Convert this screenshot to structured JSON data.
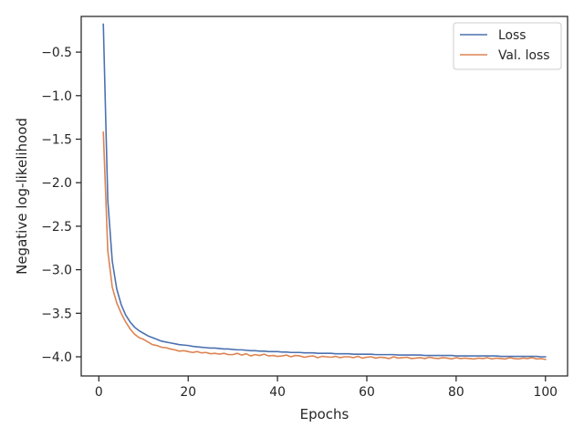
{
  "chart_data": {
    "type": "line",
    "xlabel": "Epochs",
    "ylabel": "Negative log-likelihood",
    "xlim": [
      -3.95,
      104.95
    ],
    "ylim": [
      -4.22,
      -0.09
    ],
    "xticks": [
      0,
      20,
      40,
      60,
      80,
      100
    ],
    "yticks": [
      -4.0,
      -3.5,
      -3.0,
      -2.5,
      -2.0,
      -1.5,
      -1.0,
      -0.5
    ],
    "xtick_labels": [
      "0",
      "20",
      "40",
      "60",
      "80",
      "100"
    ],
    "ytick_labels": [
      "−4.0",
      "−3.5",
      "−3.0",
      "−2.5",
      "−2.0",
      "−1.5",
      "−1.0",
      "−0.5"
    ],
    "grid": false,
    "legend_position": "top-right",
    "series": [
      {
        "name": "Loss",
        "color": "#4c72b0",
        "x": [
          1,
          2,
          3,
          4,
          5,
          6,
          7,
          8,
          9,
          10,
          11,
          12,
          13,
          14,
          15,
          16,
          17,
          18,
          19,
          20,
          21,
          22,
          23,
          24,
          25,
          26,
          27,
          28,
          29,
          30,
          31,
          32,
          33,
          34,
          35,
          36,
          37,
          38,
          39,
          40,
          41,
          42,
          43,
          44,
          45,
          46,
          47,
          48,
          49,
          50,
          51,
          52,
          53,
          54,
          55,
          56,
          57,
          58,
          59,
          60,
          61,
          62,
          63,
          64,
          65,
          66,
          67,
          68,
          69,
          70,
          71,
          72,
          73,
          74,
          75,
          76,
          77,
          78,
          79,
          80,
          81,
          82,
          83,
          84,
          85,
          86,
          87,
          88,
          89,
          90,
          91,
          92,
          93,
          94,
          95,
          96,
          97,
          98,
          99,
          100
        ],
        "y": [
          -0.18,
          -2.2,
          -2.9,
          -3.22,
          -3.4,
          -3.52,
          -3.6,
          -3.66,
          -3.7,
          -3.73,
          -3.76,
          -3.78,
          -3.8,
          -3.82,
          -3.83,
          -3.84,
          -3.85,
          -3.86,
          -3.865,
          -3.87,
          -3.88,
          -3.885,
          -3.89,
          -3.895,
          -3.9,
          -3.9,
          -3.905,
          -3.91,
          -3.91,
          -3.915,
          -3.92,
          -3.92,
          -3.925,
          -3.93,
          -3.93,
          -3.935,
          -3.935,
          -3.94,
          -3.94,
          -3.94,
          -3.945,
          -3.945,
          -3.95,
          -3.95,
          -3.95,
          -3.955,
          -3.955,
          -3.955,
          -3.96,
          -3.96,
          -3.96,
          -3.96,
          -3.965,
          -3.965,
          -3.965,
          -3.965,
          -3.97,
          -3.97,
          -3.97,
          -3.97,
          -3.97,
          -3.975,
          -3.975,
          -3.975,
          -3.975,
          -3.975,
          -3.98,
          -3.98,
          -3.98,
          -3.98,
          -3.98,
          -3.98,
          -3.985,
          -3.985,
          -3.985,
          -3.985,
          -3.985,
          -3.985,
          -3.985,
          -3.99,
          -3.99,
          -3.99,
          -3.99,
          -3.99,
          -3.99,
          -3.99,
          -3.99,
          -3.99,
          -3.99,
          -3.995,
          -3.995,
          -3.995,
          -3.995,
          -3.995,
          -3.995,
          -3.995,
          -3.995,
          -3.995,
          -4.0,
          -4.0
        ]
      },
      {
        "name": "Val. loss",
        "color": "#dd8452",
        "x": [
          1,
          2,
          3,
          4,
          5,
          6,
          7,
          8,
          9,
          10,
          11,
          12,
          13,
          14,
          15,
          16,
          17,
          18,
          19,
          20,
          21,
          22,
          23,
          24,
          25,
          26,
          27,
          28,
          29,
          30,
          31,
          32,
          33,
          34,
          35,
          36,
          37,
          38,
          39,
          40,
          41,
          42,
          43,
          44,
          45,
          46,
          47,
          48,
          49,
          50,
          51,
          52,
          53,
          54,
          55,
          56,
          57,
          58,
          59,
          60,
          61,
          62,
          63,
          64,
          65,
          66,
          67,
          68,
          69,
          70,
          71,
          72,
          73,
          74,
          75,
          76,
          77,
          78,
          79,
          80,
          81,
          82,
          83,
          84,
          85,
          86,
          87,
          88,
          89,
          90,
          91,
          92,
          93,
          94,
          95,
          96,
          97,
          98,
          99,
          100
        ],
        "y": [
          -1.42,
          -2.78,
          -3.2,
          -3.38,
          -3.5,
          -3.6,
          -3.68,
          -3.74,
          -3.78,
          -3.8,
          -3.83,
          -3.86,
          -3.87,
          -3.89,
          -3.895,
          -3.91,
          -3.92,
          -3.935,
          -3.93,
          -3.94,
          -3.95,
          -3.94,
          -3.955,
          -3.95,
          -3.965,
          -3.96,
          -3.97,
          -3.96,
          -3.975,
          -3.975,
          -3.96,
          -3.98,
          -3.965,
          -3.99,
          -3.975,
          -3.985,
          -3.97,
          -3.99,
          -3.985,
          -3.995,
          -3.99,
          -3.98,
          -4.0,
          -3.985,
          -3.99,
          -4.005,
          -3.995,
          -3.99,
          -4.01,
          -3.995,
          -4.0,
          -4.005,
          -3.995,
          -4.01,
          -4.0,
          -4.0,
          -4.01,
          -3.995,
          -4.015,
          -4.005,
          -4.0,
          -4.015,
          -4.005,
          -4.01,
          -4.02,
          -4.0,
          -4.015,
          -4.01,
          -4.005,
          -4.02,
          -4.015,
          -4.01,
          -4.02,
          -4.005,
          -4.015,
          -4.02,
          -4.01,
          -4.015,
          -4.025,
          -4.01,
          -4.02,
          -4.015,
          -4.02,
          -4.025,
          -4.015,
          -4.02,
          -4.01,
          -4.025,
          -4.015,
          -4.02,
          -4.025,
          -4.01,
          -4.02,
          -4.025,
          -4.015,
          -4.02,
          -4.01,
          -4.025,
          -4.02,
          -4.03
        ]
      }
    ]
  }
}
